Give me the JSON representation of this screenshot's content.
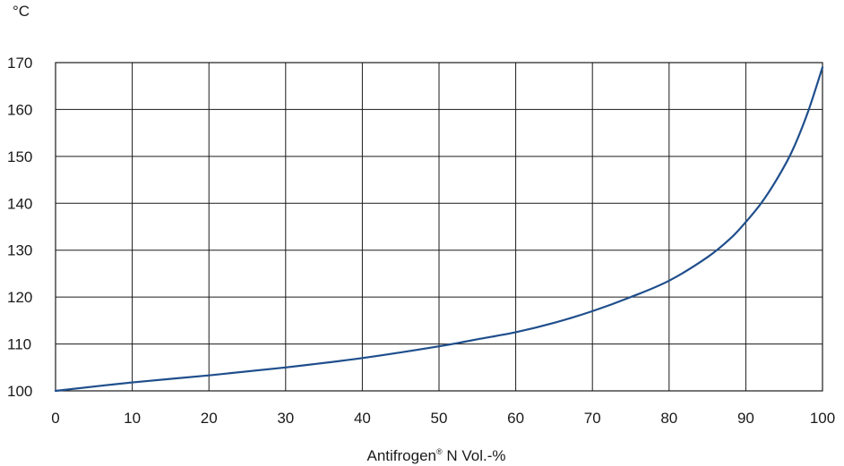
{
  "chart_data": {
    "type": "line",
    "y_unit_label": "°C",
    "xlabel": {
      "main": "Antifrogen",
      "superscript": "®",
      "rest": " N Vol.-%"
    },
    "xlim": [
      0,
      100
    ],
    "ylim": [
      100,
      170
    ],
    "x_ticks": [
      "0",
      "10",
      "20",
      "30",
      "40",
      "50",
      "60",
      "70",
      "80",
      "90",
      "100"
    ],
    "y_ticks": [
      "100",
      "110",
      "120",
      "130",
      "140",
      "150",
      "160",
      "170"
    ],
    "grid": true,
    "line_color": "#1f4e8c",
    "series": [
      {
        "x": [
          0,
          10,
          20,
          30,
          40,
          50,
          55,
          60,
          65,
          70,
          75,
          80,
          85,
          88,
          90,
          92,
          94,
          96,
          98,
          100
        ],
        "y": [
          100,
          101.8,
          103.3,
          105,
          107,
          109.5,
          111,
          112.5,
          114.5,
          117,
          120,
          123.5,
          128.5,
          132.5,
          136,
          140,
          145,
          151,
          159,
          169
        ]
      }
    ]
  }
}
